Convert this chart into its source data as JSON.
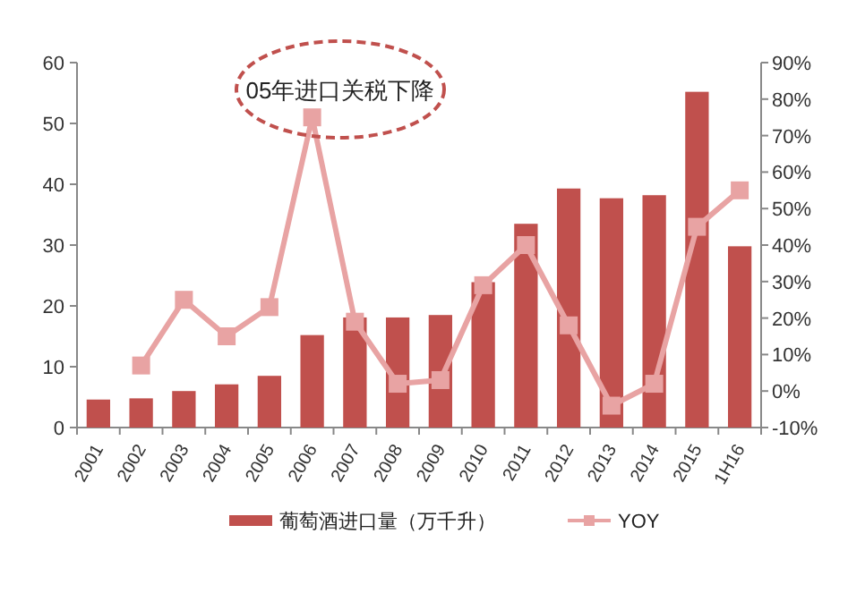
{
  "chart_data": {
    "type": "bar",
    "categories": [
      "2001",
      "2002",
      "2003",
      "2004",
      "2005",
      "2006",
      "2007",
      "2008",
      "2009",
      "2010",
      "2011",
      "2012",
      "2013",
      "2014",
      "2015",
      "1H16"
    ],
    "series": [
      {
        "name": "葡萄酒进口量（万千升）",
        "color": "#c0504d",
        "values": [
          4.6,
          4.8,
          6.0,
          7.1,
          8.5,
          15.2,
          18.1,
          18.1,
          18.5,
          23.9,
          33.5,
          39.3,
          37.7,
          38.2,
          55.2,
          29.8
        ]
      },
      {
        "name": "YOY",
        "type": "line",
        "axis": "y2",
        "color": "#e8a3a3",
        "marker": "square",
        "values": [
          null,
          7,
          25,
          15,
          23,
          75,
          19,
          2,
          3,
          29,
          40,
          18,
          -4,
          2,
          45,
          55
        ]
      }
    ],
    "ylim": [
      0,
      60
    ],
    "yticks": [
      0,
      10,
      20,
      30,
      40,
      50,
      60
    ],
    "y2lim": [
      -10,
      90
    ],
    "y2ticks": [
      {
        "value": -10,
        "label": "-10%"
      },
      {
        "value": 0,
        "label": "0%"
      },
      {
        "value": 10,
        "label": "10%"
      },
      {
        "value": 20,
        "label": "20%"
      },
      {
        "value": 30,
        "label": "30%"
      },
      {
        "value": 40,
        "label": "40%"
      },
      {
        "value": 50,
        "label": "50%"
      },
      {
        "value": 60,
        "label": "60%"
      },
      {
        "value": 70,
        "label": "70%"
      },
      {
        "value": 80,
        "label": "80%"
      },
      {
        "value": 90,
        "label": "90%"
      }
    ],
    "annotations": [
      "05年进口关税下降"
    ],
    "legend": "bottom"
  }
}
